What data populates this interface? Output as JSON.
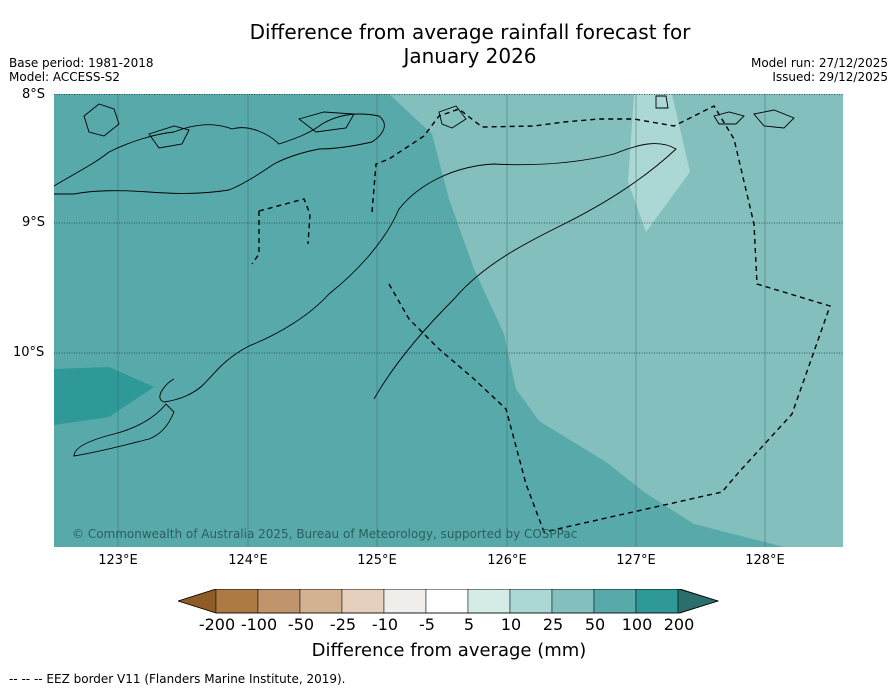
{
  "title": {
    "line1": "Difference from average rainfall forecast for",
    "line2": "January 2026"
  },
  "meta": {
    "base_period": "Base period: 1981-2018",
    "model": "Model: ACCESS-S2",
    "model_run": "Model run: 27/12/2025",
    "issued": "Issued: 29/12/2025"
  },
  "map": {
    "latitudes": [
      "8°S",
      "9°S",
      "10°S"
    ],
    "longitudes": [
      "123°E",
      "124°E",
      "125°E",
      "126°E",
      "127°E",
      "128°E"
    ],
    "copyright": "© Commonwealth of Australia 2025, Bureau of Meteorology, supported by COSPPac"
  },
  "colorbar": {
    "ticks": [
      "-200",
      "-100",
      "-50",
      "-25",
      "-10",
      "-5",
      "5",
      "10",
      "25",
      "50",
      "100",
      "200"
    ],
    "colors": [
      "#8f5c25",
      "#ad7a43",
      "#c1956b",
      "#d2b291",
      "#e4d0bd",
      "#efeeea",
      "#ffffff",
      "#d5ebe8",
      "#abd7d4",
      "#83bfbd",
      "#58aaaa",
      "#2f9997",
      "#2b6f6d"
    ],
    "label": "Difference from average (mm)"
  },
  "legend_note": "--  --  -- EEZ border V11 (Flanders Marine Institute, 2019)."
}
